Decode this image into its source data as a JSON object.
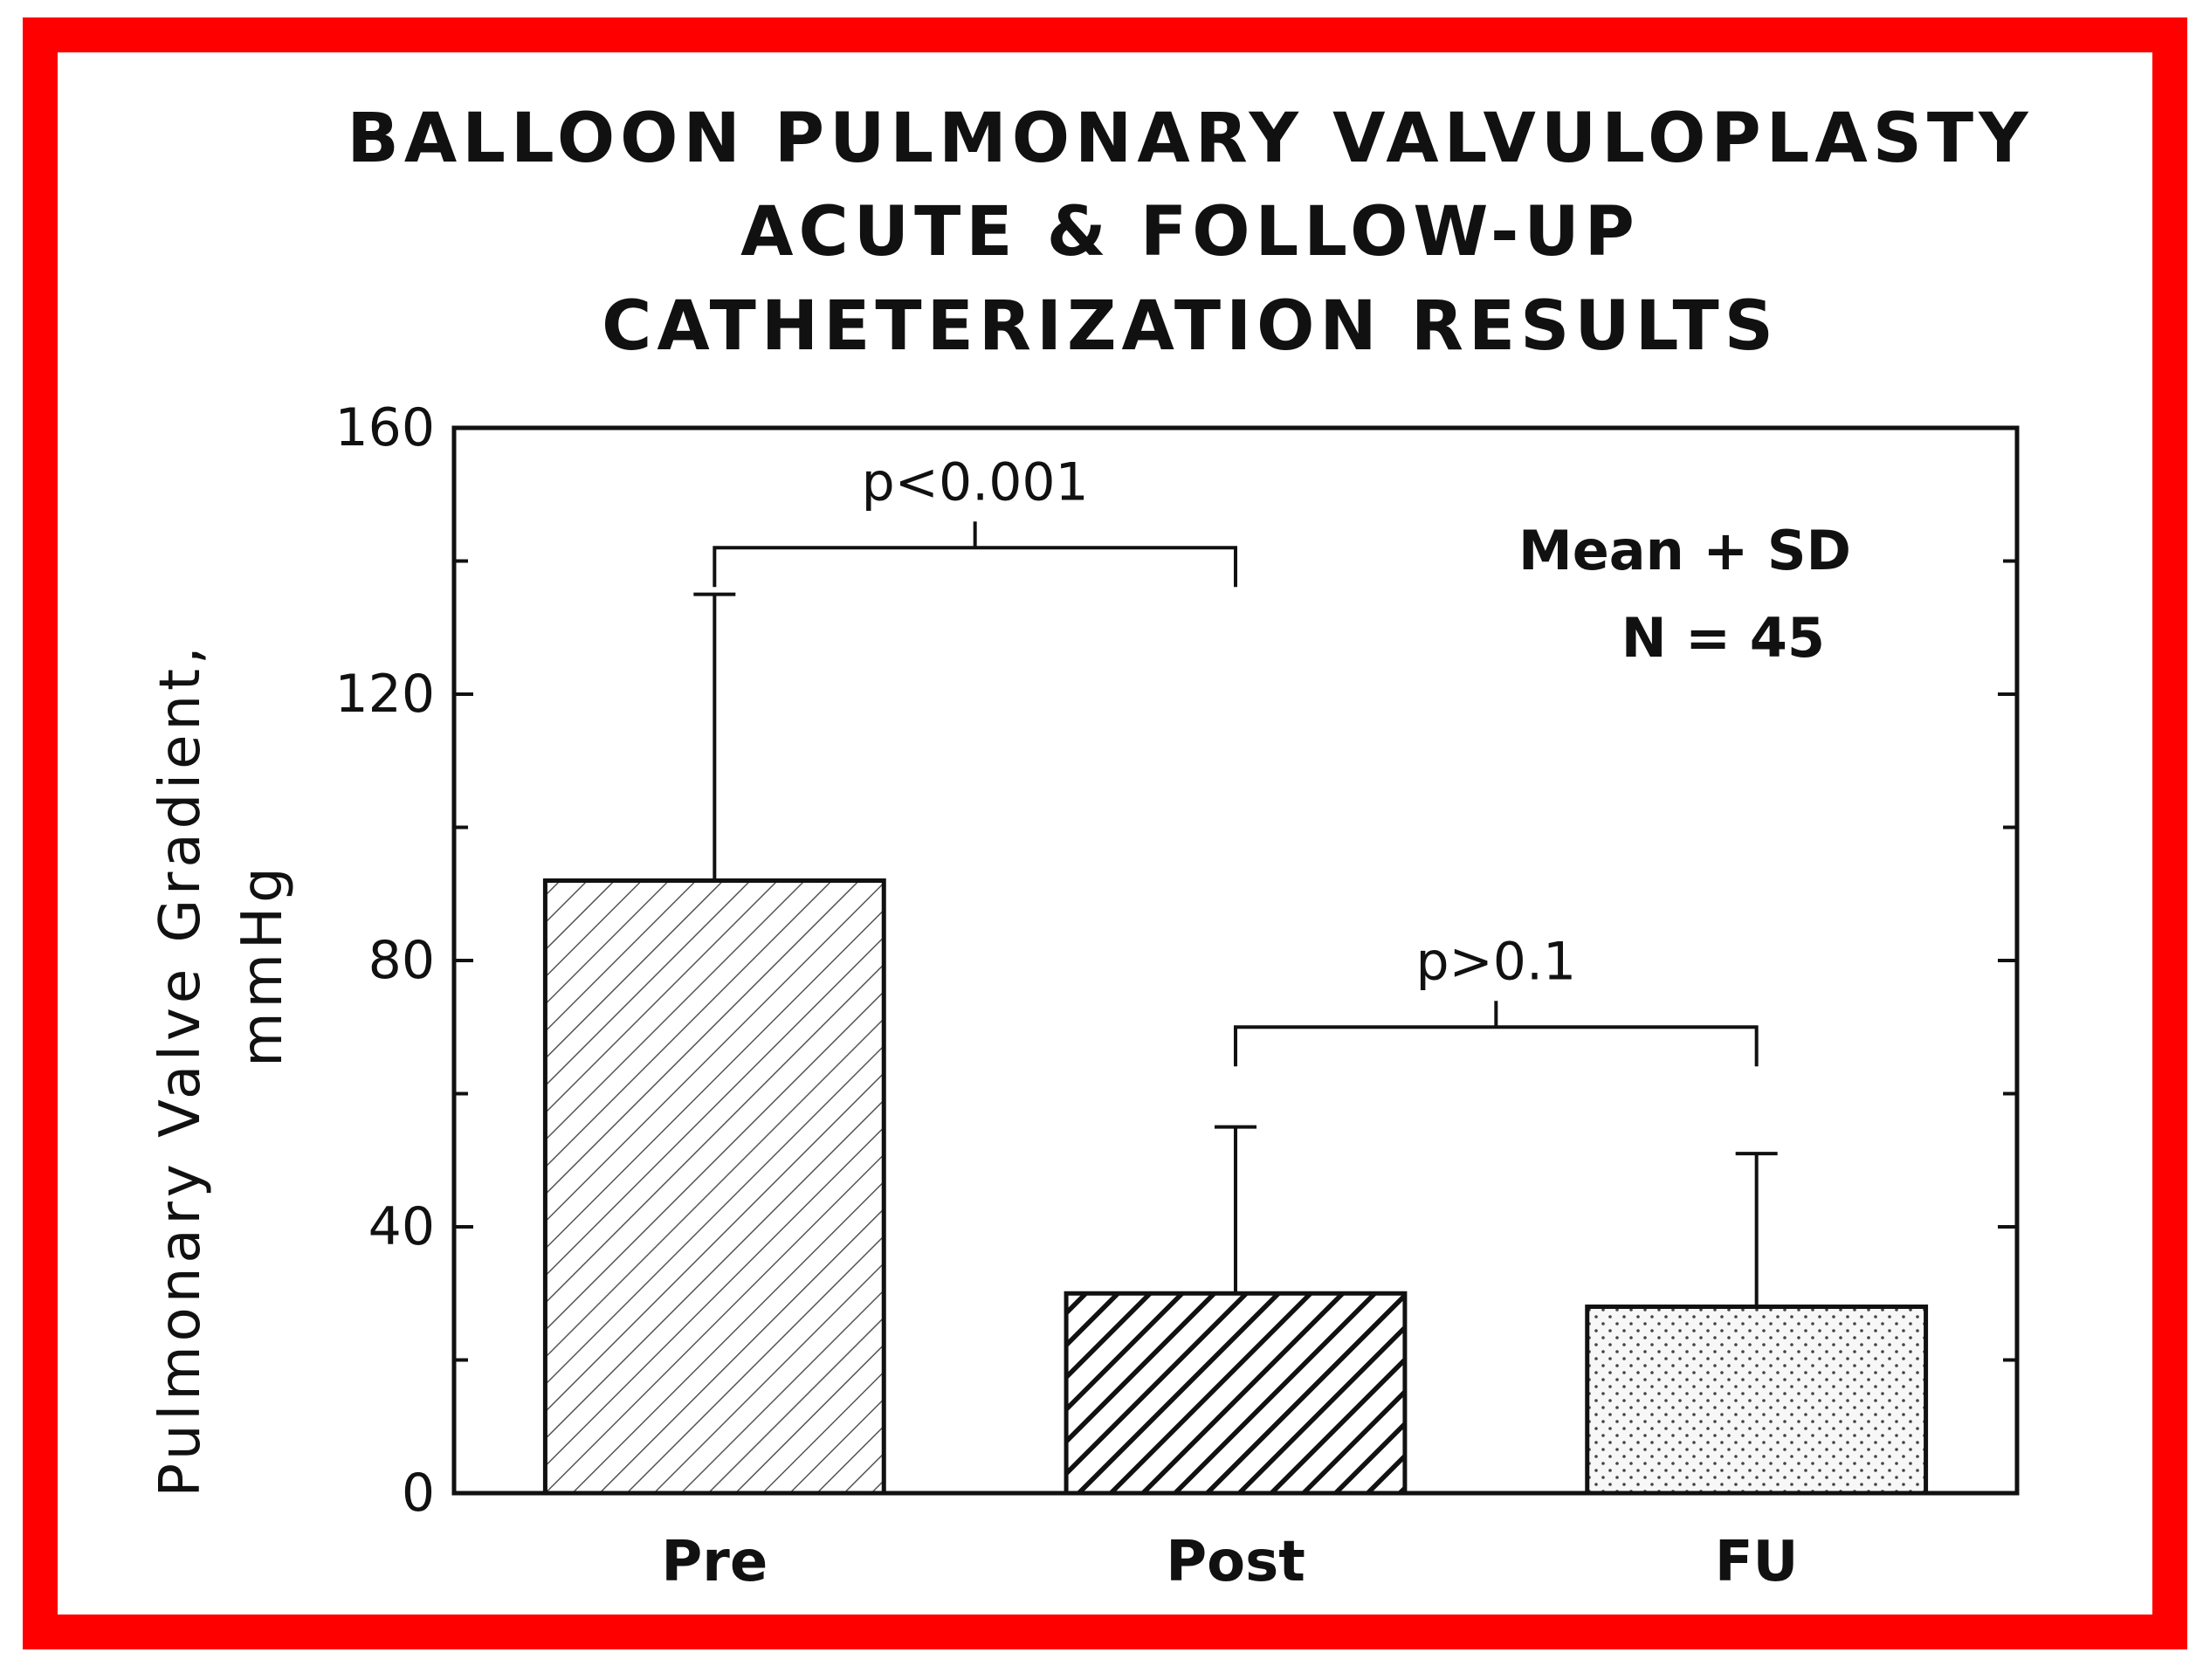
{
  "chart_data": {
    "type": "bar",
    "title_lines": [
      "BALLOON PULMONARY VALVULOPLASTY",
      "ACUTE & FOLLOW-UP",
      "CATHETERIZATION RESULTS"
    ],
    "ylabel_lines": [
      "Pulmonary Valve Gradient,",
      "mmHg"
    ],
    "xlabel": "",
    "ylim": [
      0,
      160
    ],
    "yticks": [
      0,
      40,
      80,
      120,
      160
    ],
    "yticks_labels": [
      "0",
      "40",
      "80",
      "120",
      "160"
    ],
    "categories": [
      "Pre",
      "Post",
      "FU"
    ],
    "values": [
      92,
      30,
      28
    ],
    "errors": [
      43,
      25,
      23
    ],
    "bar_patterns": [
      "light-hatch",
      "dark-hatch",
      "dots"
    ],
    "grid": false,
    "legend_note": [
      "Mean + SD",
      "N = 45"
    ],
    "legend_placement": "top-right",
    "annotations": [
      {
        "text": "p<0.001",
        "from": "Pre",
        "to": "Post",
        "level": 142
      },
      {
        "text": "p>0.1",
        "from": "Post",
        "to": "FU",
        "level": 70
      }
    ]
  },
  "colors": {
    "border": "#ff0000",
    "ink": "#111111",
    "background": "#ffffff"
  }
}
